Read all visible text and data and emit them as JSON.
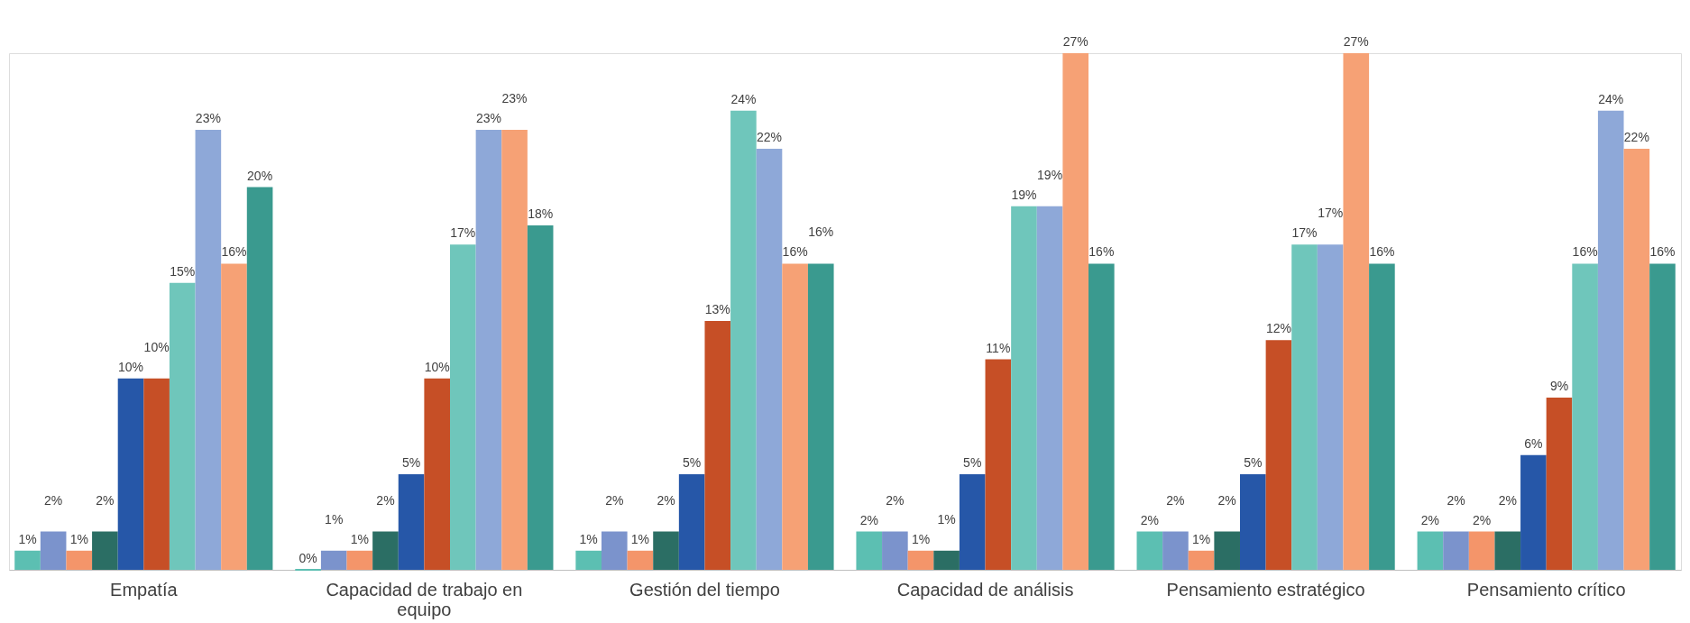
{
  "chart_data": {
    "type": "bar",
    "categories": [
      "Empatía",
      "Capacidad de trabajo en equipo",
      "Gestión del tiempo",
      "Capacidad de análisis",
      "Pensamiento estratégico",
      "Pensamiento crítico"
    ],
    "series": [
      {
        "color": "#5cbfb2",
        "values": [
          1,
          0,
          1,
          2,
          2,
          2
        ],
        "value_labels": [
          "1%",
          "0%",
          "1%",
          "2%",
          "2%",
          "2%"
        ]
      },
      {
        "color": "#7b93cc",
        "values": [
          2,
          1,
          2,
          2,
          2,
          2
        ],
        "value_labels": [
          "2%",
          "1%",
          "2%",
          "2%",
          "2%",
          "2%"
        ]
      },
      {
        "color": "#f4956a",
        "values": [
          1,
          1,
          1,
          1,
          1,
          2
        ],
        "value_labels": [
          "1%",
          "1%",
          "1%",
          "1%",
          "1%",
          "2%"
        ]
      },
      {
        "color": "#2b6e64",
        "values": [
          2,
          2,
          2,
          1,
          2,
          2
        ],
        "value_labels": [
          "2%",
          "2%",
          "2%",
          "1%",
          "2%",
          "2%"
        ]
      },
      {
        "color": "#2657a8",
        "values": [
          10,
          5,
          5,
          5,
          5,
          6
        ],
        "value_labels": [
          "10%",
          "5%",
          "5%",
          "5%",
          "5%",
          "6%"
        ]
      },
      {
        "color": "#c64f26",
        "values": [
          10,
          10,
          13,
          11,
          12,
          9
        ],
        "value_labels": [
          "10%",
          "10%",
          "13%",
          "11%",
          "12%",
          "9%"
        ]
      },
      {
        "color": "#6fc6bb",
        "values": [
          15,
          17,
          24,
          19,
          17,
          16
        ],
        "value_labels": [
          "15%",
          "17%",
          "24%",
          "19%",
          "17%",
          "16%"
        ]
      },
      {
        "color": "#8ea8d8",
        "values": [
          23,
          23,
          22,
          19,
          17,
          24
        ],
        "value_labels": [
          "23%",
          "23%",
          "22%",
          "19%",
          "17%",
          "24%"
        ]
      },
      {
        "color": "#f6a175",
        "values": [
          16,
          23,
          16,
          27,
          27,
          22
        ],
        "value_labels": [
          "16%",
          "23%",
          "16%",
          "27%",
          "27%",
          "22%"
        ]
      },
      {
        "color": "#3a9a8f",
        "values": [
          20,
          18,
          16,
          16,
          16,
          16
        ],
        "value_labels": [
          "20%",
          "18%",
          "16%",
          "16%",
          "16%",
          "16%"
        ]
      }
    ],
    "grid": false,
    "legend": false
  }
}
